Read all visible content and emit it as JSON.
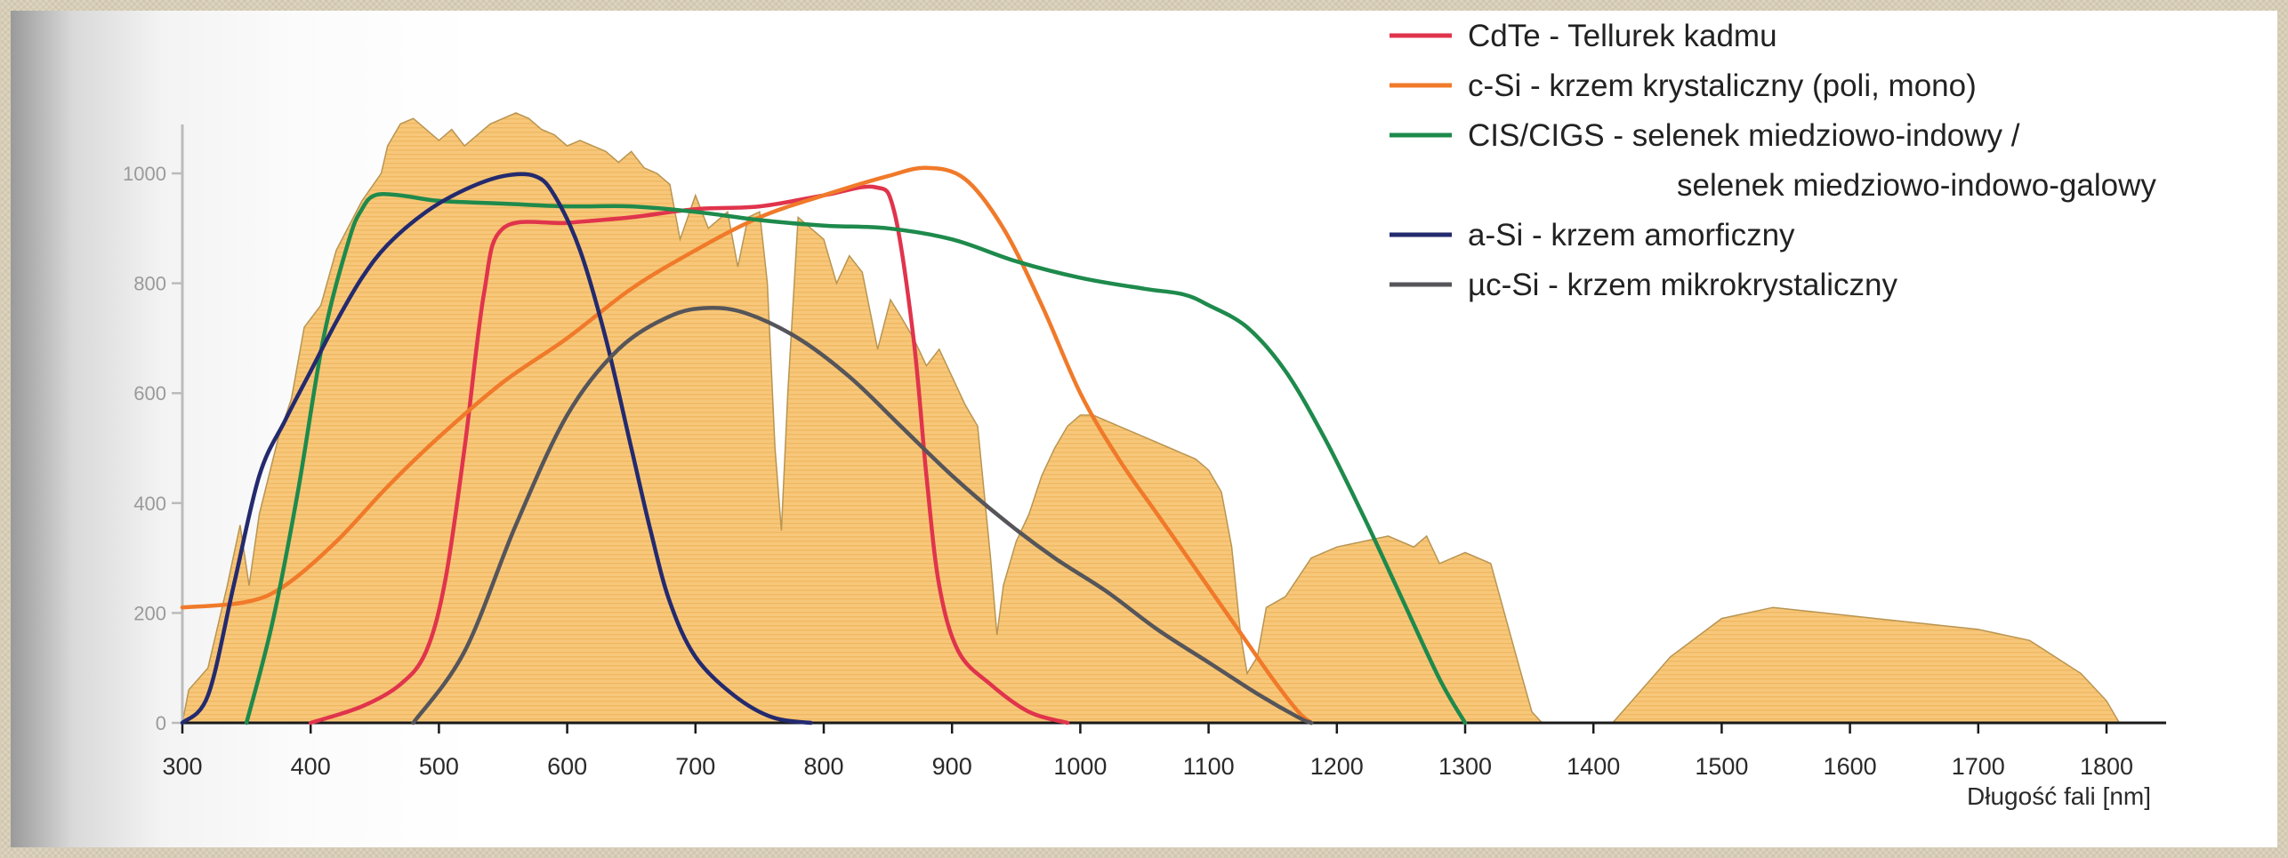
{
  "chart_data": {
    "type": "line",
    "xlabel": "Długość fali [nm]",
    "xlim": [
      300,
      1820
    ],
    "ylim": [
      0,
      1000
    ],
    "xticks": [
      300,
      400,
      500,
      600,
      700,
      800,
      900,
      1000,
      1100,
      1200,
      1300,
      1400,
      1500,
      1600,
      1700,
      1800
    ],
    "yticks": [
      0,
      200,
      400,
      600,
      800,
      1000
    ],
    "grid": false,
    "legend_position": "top-right",
    "background_area": {
      "color": "#f7c77a",
      "points": [
        [
          300,
          0
        ],
        [
          305,
          60
        ],
        [
          320,
          100
        ],
        [
          335,
          250
        ],
        [
          345,
          360
        ],
        [
          352,
          250
        ],
        [
          360,
          380
        ],
        [
          375,
          520
        ],
        [
          385,
          590
        ],
        [
          395,
          720
        ],
        [
          408,
          760
        ],
        [
          420,
          860
        ],
        [
          440,
          950
        ],
        [
          455,
          1000
        ],
        [
          460,
          1050
        ],
        [
          470,
          1090
        ],
        [
          480,
          1100
        ],
        [
          490,
          1080
        ],
        [
          500,
          1060
        ],
        [
          510,
          1080
        ],
        [
          520,
          1050
        ],
        [
          530,
          1070
        ],
        [
          540,
          1090
        ],
        [
          550,
          1100
        ],
        [
          560,
          1110
        ],
        [
          570,
          1100
        ],
        [
          580,
          1080
        ],
        [
          590,
          1070
        ],
        [
          600,
          1050
        ],
        [
          610,
          1060
        ],
        [
          620,
          1050
        ],
        [
          630,
          1040
        ],
        [
          640,
          1020
        ],
        [
          650,
          1040
        ],
        [
          660,
          1010
        ],
        [
          670,
          1000
        ],
        [
          680,
          980
        ],
        [
          688,
          880
        ],
        [
          700,
          960
        ],
        [
          710,
          900
        ],
        [
          725,
          930
        ],
        [
          733,
          830
        ],
        [
          741,
          920
        ],
        [
          750,
          930
        ],
        [
          756,
          800
        ],
        [
          762,
          500
        ],
        [
          767,
          350
        ],
        [
          772,
          600
        ],
        [
          780,
          920
        ],
        [
          790,
          900
        ],
        [
          800,
          880
        ],
        [
          810,
          800
        ],
        [
          820,
          850
        ],
        [
          830,
          820
        ],
        [
          842,
          680
        ],
        [
          852,
          770
        ],
        [
          860,
          740
        ],
        [
          870,
          700
        ],
        [
          880,
          650
        ],
        [
          890,
          680
        ],
        [
          902,
          620
        ],
        [
          910,
          580
        ],
        [
          920,
          540
        ],
        [
          930,
          300
        ],
        [
          935,
          160
        ],
        [
          940,
          250
        ],
        [
          950,
          330
        ],
        [
          960,
          380
        ],
        [
          970,
          450
        ],
        [
          980,
          500
        ],
        [
          990,
          540
        ],
        [
          1000,
          560
        ],
        [
          1010,
          560
        ],
        [
          1030,
          540
        ],
        [
          1050,
          520
        ],
        [
          1070,
          500
        ],
        [
          1090,
          480
        ],
        [
          1100,
          460
        ],
        [
          1110,
          420
        ],
        [
          1118,
          320
        ],
        [
          1125,
          160
        ],
        [
          1130,
          90
        ],
        [
          1138,
          120
        ],
        [
          1145,
          210
        ],
        [
          1160,
          230
        ],
        [
          1180,
          300
        ],
        [
          1200,
          320
        ],
        [
          1220,
          330
        ],
        [
          1240,
          340
        ],
        [
          1260,
          320
        ],
        [
          1270,
          340
        ],
        [
          1280,
          290
        ],
        [
          1300,
          310
        ],
        [
          1320,
          290
        ],
        [
          1340,
          120
        ],
        [
          1352,
          20
        ],
        [
          1360,
          0
        ],
        [
          1415,
          0
        ],
        [
          1430,
          40
        ],
        [
          1460,
          120
        ],
        [
          1500,
          190
        ],
        [
          1540,
          210
        ],
        [
          1580,
          200
        ],
        [
          1620,
          190
        ],
        [
          1660,
          180
        ],
        [
          1700,
          170
        ],
        [
          1740,
          150
        ],
        [
          1780,
          90
        ],
        [
          1800,
          40
        ],
        [
          1810,
          0
        ]
      ]
    },
    "series": [
      {
        "name": "CdTe - Tellurek kadmu",
        "color": "#e0344c",
        "points": [
          [
            400,
            0
          ],
          [
            440,
            30
          ],
          [
            470,
            70
          ],
          [
            490,
            130
          ],
          [
            505,
            260
          ],
          [
            520,
            500
          ],
          [
            535,
            780
          ],
          [
            550,
            900
          ],
          [
            600,
            910
          ],
          [
            650,
            920
          ],
          [
            700,
            935
          ],
          [
            750,
            940
          ],
          [
            800,
            960
          ],
          [
            840,
            975
          ],
          [
            855,
            930
          ],
          [
            870,
            700
          ],
          [
            880,
            450
          ],
          [
            890,
            250
          ],
          [
            905,
            130
          ],
          [
            930,
            70
          ],
          [
            960,
            20
          ],
          [
            990,
            0
          ]
        ]
      },
      {
        "name": "c-Si - krzem krystaliczny (poli, mono)",
        "color": "#f07a2a",
        "points": [
          [
            300,
            210
          ],
          [
            350,
            220
          ],
          [
            380,
            250
          ],
          [
            420,
            330
          ],
          [
            460,
            430
          ],
          [
            500,
            520
          ],
          [
            550,
            620
          ],
          [
            600,
            700
          ],
          [
            650,
            790
          ],
          [
            700,
            860
          ],
          [
            750,
            920
          ],
          [
            800,
            960
          ],
          [
            850,
            995
          ],
          [
            880,
            1010
          ],
          [
            910,
            990
          ],
          [
            940,
            900
          ],
          [
            970,
            760
          ],
          [
            1000,
            600
          ],
          [
            1030,
            480
          ],
          [
            1060,
            380
          ],
          [
            1090,
            280
          ],
          [
            1120,
            180
          ],
          [
            1150,
            80
          ],
          [
            1170,
            20
          ],
          [
            1180,
            0
          ]
        ]
      },
      {
        "name": "CIS/CIGS - selenek miedziowo-indowy /\nselenek miedziowo-indowo-galowy",
        "color": "#1e8a4c",
        "points": [
          [
            350,
            0
          ],
          [
            370,
            180
          ],
          [
            390,
            420
          ],
          [
            410,
            700
          ],
          [
            430,
            880
          ],
          [
            440,
            935
          ],
          [
            450,
            960
          ],
          [
            470,
            960
          ],
          [
            500,
            950
          ],
          [
            550,
            945
          ],
          [
            600,
            940
          ],
          [
            650,
            940
          ],
          [
            700,
            930
          ],
          [
            750,
            915
          ],
          [
            800,
            905
          ],
          [
            850,
            900
          ],
          [
            900,
            880
          ],
          [
            950,
            840
          ],
          [
            1000,
            810
          ],
          [
            1050,
            790
          ],
          [
            1080,
            780
          ],
          [
            1100,
            760
          ],
          [
            1130,
            720
          ],
          [
            1160,
            640
          ],
          [
            1190,
            520
          ],
          [
            1220,
            380
          ],
          [
            1250,
            230
          ],
          [
            1280,
            80
          ],
          [
            1300,
            0
          ]
        ]
      },
      {
        "name": "a-Si - krzem amorficzny",
        "color": "#242a6e",
        "points": [
          [
            300,
            0
          ],
          [
            320,
            50
          ],
          [
            340,
            250
          ],
          [
            360,
            450
          ],
          [
            380,
            550
          ],
          [
            400,
            640
          ],
          [
            420,
            730
          ],
          [
            440,
            810
          ],
          [
            460,
            870
          ],
          [
            490,
            930
          ],
          [
            520,
            970
          ],
          [
            550,
            995
          ],
          [
            575,
            995
          ],
          [
            590,
            960
          ],
          [
            610,
            860
          ],
          [
            630,
            700
          ],
          [
            650,
            500
          ],
          [
            665,
            350
          ],
          [
            680,
            220
          ],
          [
            700,
            120
          ],
          [
            730,
            50
          ],
          [
            760,
            10
          ],
          [
            790,
            0
          ]
        ]
      },
      {
        "name": "µc-Si - krzem mikrokrystaliczny",
        "color": "#55555a",
        "points": [
          [
            480,
            0
          ],
          [
            520,
            130
          ],
          [
            560,
            360
          ],
          [
            600,
            560
          ],
          [
            640,
            680
          ],
          [
            680,
            740
          ],
          [
            710,
            755
          ],
          [
            740,
            745
          ],
          [
            780,
            700
          ],
          [
            820,
            630
          ],
          [
            860,
            540
          ],
          [
            900,
            450
          ],
          [
            940,
            370
          ],
          [
            980,
            300
          ],
          [
            1020,
            240
          ],
          [
            1060,
            170
          ],
          [
            1100,
            110
          ],
          [
            1140,
            50
          ],
          [
            1170,
            10
          ],
          [
            1180,
            0
          ]
        ]
      }
    ]
  }
}
